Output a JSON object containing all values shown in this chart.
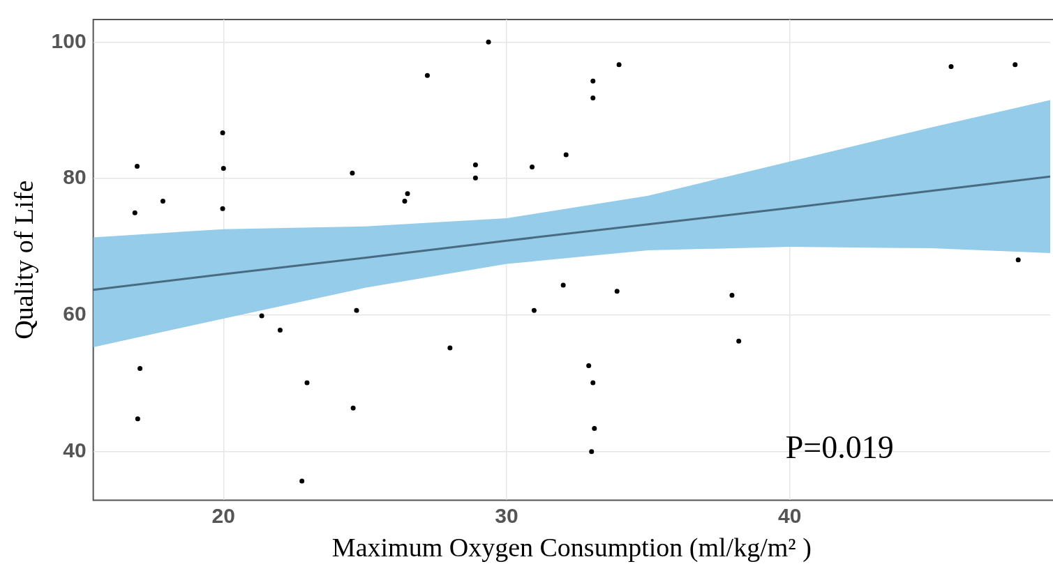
{
  "chart_data": {
    "type": "scatter",
    "xlabel": "Maximum Oxygen Consumption (ml/kg/m² )",
    "ylabel": "Quality of Life",
    "xlim": [
      15.4,
      49.2
    ],
    "xticks": [
      20,
      30,
      40
    ],
    "ylim": [
      32.9,
      103.3
    ],
    "yticks": [
      40,
      60,
      80,
      100
    ],
    "grid": true,
    "legend": false,
    "annotations": [
      "P=0.019"
    ],
    "series": [
      {
        "marker": "circle",
        "color": "#000000",
        "x": [
          16.95,
          16.87,
          17.86,
          17.05,
          16.97,
          19.97,
          20.0,
          19.97,
          21.35,
          22.0,
          22.95,
          22.77,
          24.55,
          24.58,
          24.7,
          26.4,
          26.5,
          27.2,
          28.0,
          28.9,
          28.9,
          29.36,
          30.9,
          30.97,
          32.1,
          32.0,
          33.05,
          33.05,
          32.9,
          33.05,
          33.1,
          33.0,
          33.97,
          33.9,
          37.96,
          38.2,
          45.7,
          47.96,
          48.07
        ],
        "values": [
          81.8,
          75.0,
          76.7,
          52.2,
          44.8,
          86.7,
          81.5,
          75.6,
          59.9,
          57.8,
          50.1,
          35.7,
          80.8,
          46.4,
          60.7,
          76.7,
          77.8,
          95.1,
          55.2,
          82.0,
          80.1,
          100,
          81.7,
          60.7,
          83.5,
          64.4,
          94.3,
          91.8,
          52.6,
          50.1,
          43.4,
          40.0,
          96.7,
          63.5,
          62.9,
          56.2,
          96.4,
          96.7,
          68.1
        ]
      },
      {
        "type": "line",
        "color": "#4a6a82",
        "x": [
          15.4,
          20,
          25,
          30,
          35,
          40,
          45,
          49.2
        ],
        "values": [
          63.7,
          66.0,
          68.4,
          70.9,
          73.3,
          75.7,
          78.2,
          80.3
        ],
        "lower": [
          55.3,
          59.5,
          64.0,
          67.5,
          69.5,
          70.0,
          69.8,
          69.1
        ],
        "upper": [
          71.4,
          72.6,
          73.0,
          74.2,
          77.5,
          82.5,
          87.5,
          91.5
        ]
      }
    ]
  }
}
